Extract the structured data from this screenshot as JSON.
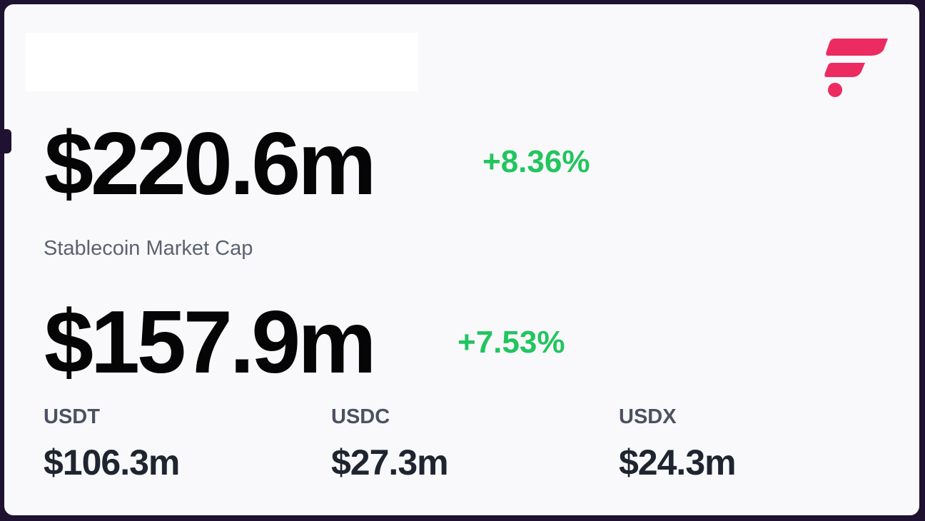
{
  "summary": {
    "primary_value": "$220.6m",
    "primary_change": "+8.36%",
    "label": "Stablecoin Market Cap",
    "secondary_value": "$157.9m",
    "secondary_change": "+7.53%"
  },
  "coins": [
    {
      "name": "USDT",
      "value": "$106.3m"
    },
    {
      "name": "USDC",
      "value": "$27.3m"
    },
    {
      "name": "USDX",
      "value": "$24.3m"
    }
  ],
  "colors": {
    "positive": "#22c55e",
    "brand": "#ec2b61",
    "frame": "#1e1230"
  },
  "logo": {
    "icon": "brand-f-logo-icon"
  }
}
